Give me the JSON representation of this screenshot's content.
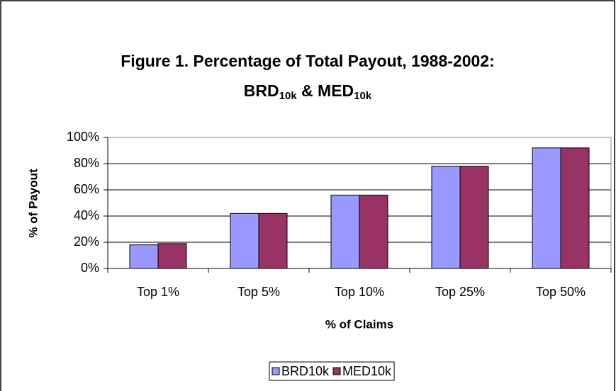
{
  "chart_data": {
    "type": "bar",
    "title": [
      "Figure 1.  Percentage of Total Payout, 1988-2002:",
      "BRD",
      "10k",
      " & MED",
      "10k"
    ],
    "xlabel": "% of Claims",
    "ylabel": "% of Payout",
    "categories": [
      "Top 1%",
      "Top 5%",
      "Top 10%",
      "Top 25%",
      "Top 50%"
    ],
    "series": [
      {
        "name": "BRD10k",
        "color": "#9999ff",
        "values": [
          18,
          42,
          56,
          78,
          92
        ]
      },
      {
        "name": "MED10k",
        "color": "#993366",
        "values": [
          19,
          42,
          56,
          78,
          92
        ]
      }
    ],
    "ylim": [
      0,
      100
    ],
    "yticks": [
      {
        "value": 0,
        "label": "0%"
      },
      {
        "value": 20,
        "label": "20%"
      },
      {
        "value": 40,
        "label": "40%"
      },
      {
        "value": 60,
        "label": "60%"
      },
      {
        "value": 80,
        "label": "80%"
      },
      {
        "value": 100,
        "label": "100%"
      }
    ],
    "grid": true,
    "legend": "bottom"
  }
}
